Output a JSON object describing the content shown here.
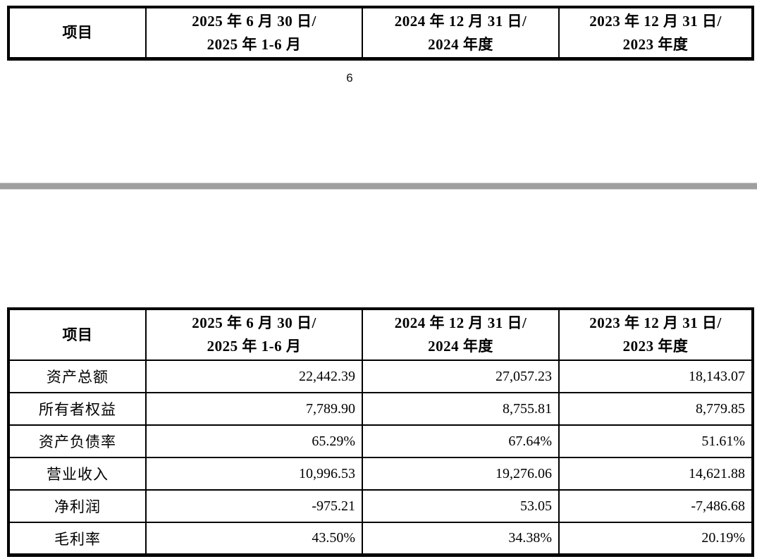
{
  "colors": {
    "background": "#ffffff",
    "table_border": "#000000",
    "text": "#000000",
    "page_divider_gray": "#9f9f9f"
  },
  "page_footer": {
    "page_number": "6"
  },
  "continued_table": {
    "columns": [
      {
        "line1": "项目"
      },
      {
        "line1": "2025 年 6 月 30 日/",
        "line2": "2025 年 1-6 月"
      },
      {
        "line1": "2024 年 12 月 31 日/",
        "line2": "2024 年度"
      },
      {
        "line1": "2023 年 12 月 31 日/",
        "line2": "2023 年度"
      }
    ]
  },
  "financial_table": {
    "columns": [
      {
        "line1": "项目"
      },
      {
        "line1": "2025 年 6 月 30 日/",
        "line2": "2025 年 1-6 月"
      },
      {
        "line1": "2024 年 12 月 31 日/",
        "line2": "2024 年度"
      },
      {
        "line1": "2023 年 12 月 31 日/",
        "line2": "2023 年度"
      }
    ],
    "rows": [
      {
        "label": "资产总额",
        "values": [
          "22,442.39",
          "27,057.23",
          "18,143.07"
        ]
      },
      {
        "label": "所有者权益",
        "values": [
          "7,789.90",
          "8,755.81",
          "8,779.85"
        ]
      },
      {
        "label": "资产负债率",
        "values": [
          "65.29%",
          "67.64%",
          "51.61%"
        ]
      },
      {
        "label": "营业收入",
        "values": [
          "10,996.53",
          "19,276.06",
          "14,621.88"
        ]
      },
      {
        "label": "净利润",
        "values": [
          "-975.21",
          "53.05",
          "-7,486.68"
        ]
      },
      {
        "label": "毛利率",
        "values": [
          "43.50%",
          "34.38%",
          "20.19%"
        ]
      }
    ]
  }
}
